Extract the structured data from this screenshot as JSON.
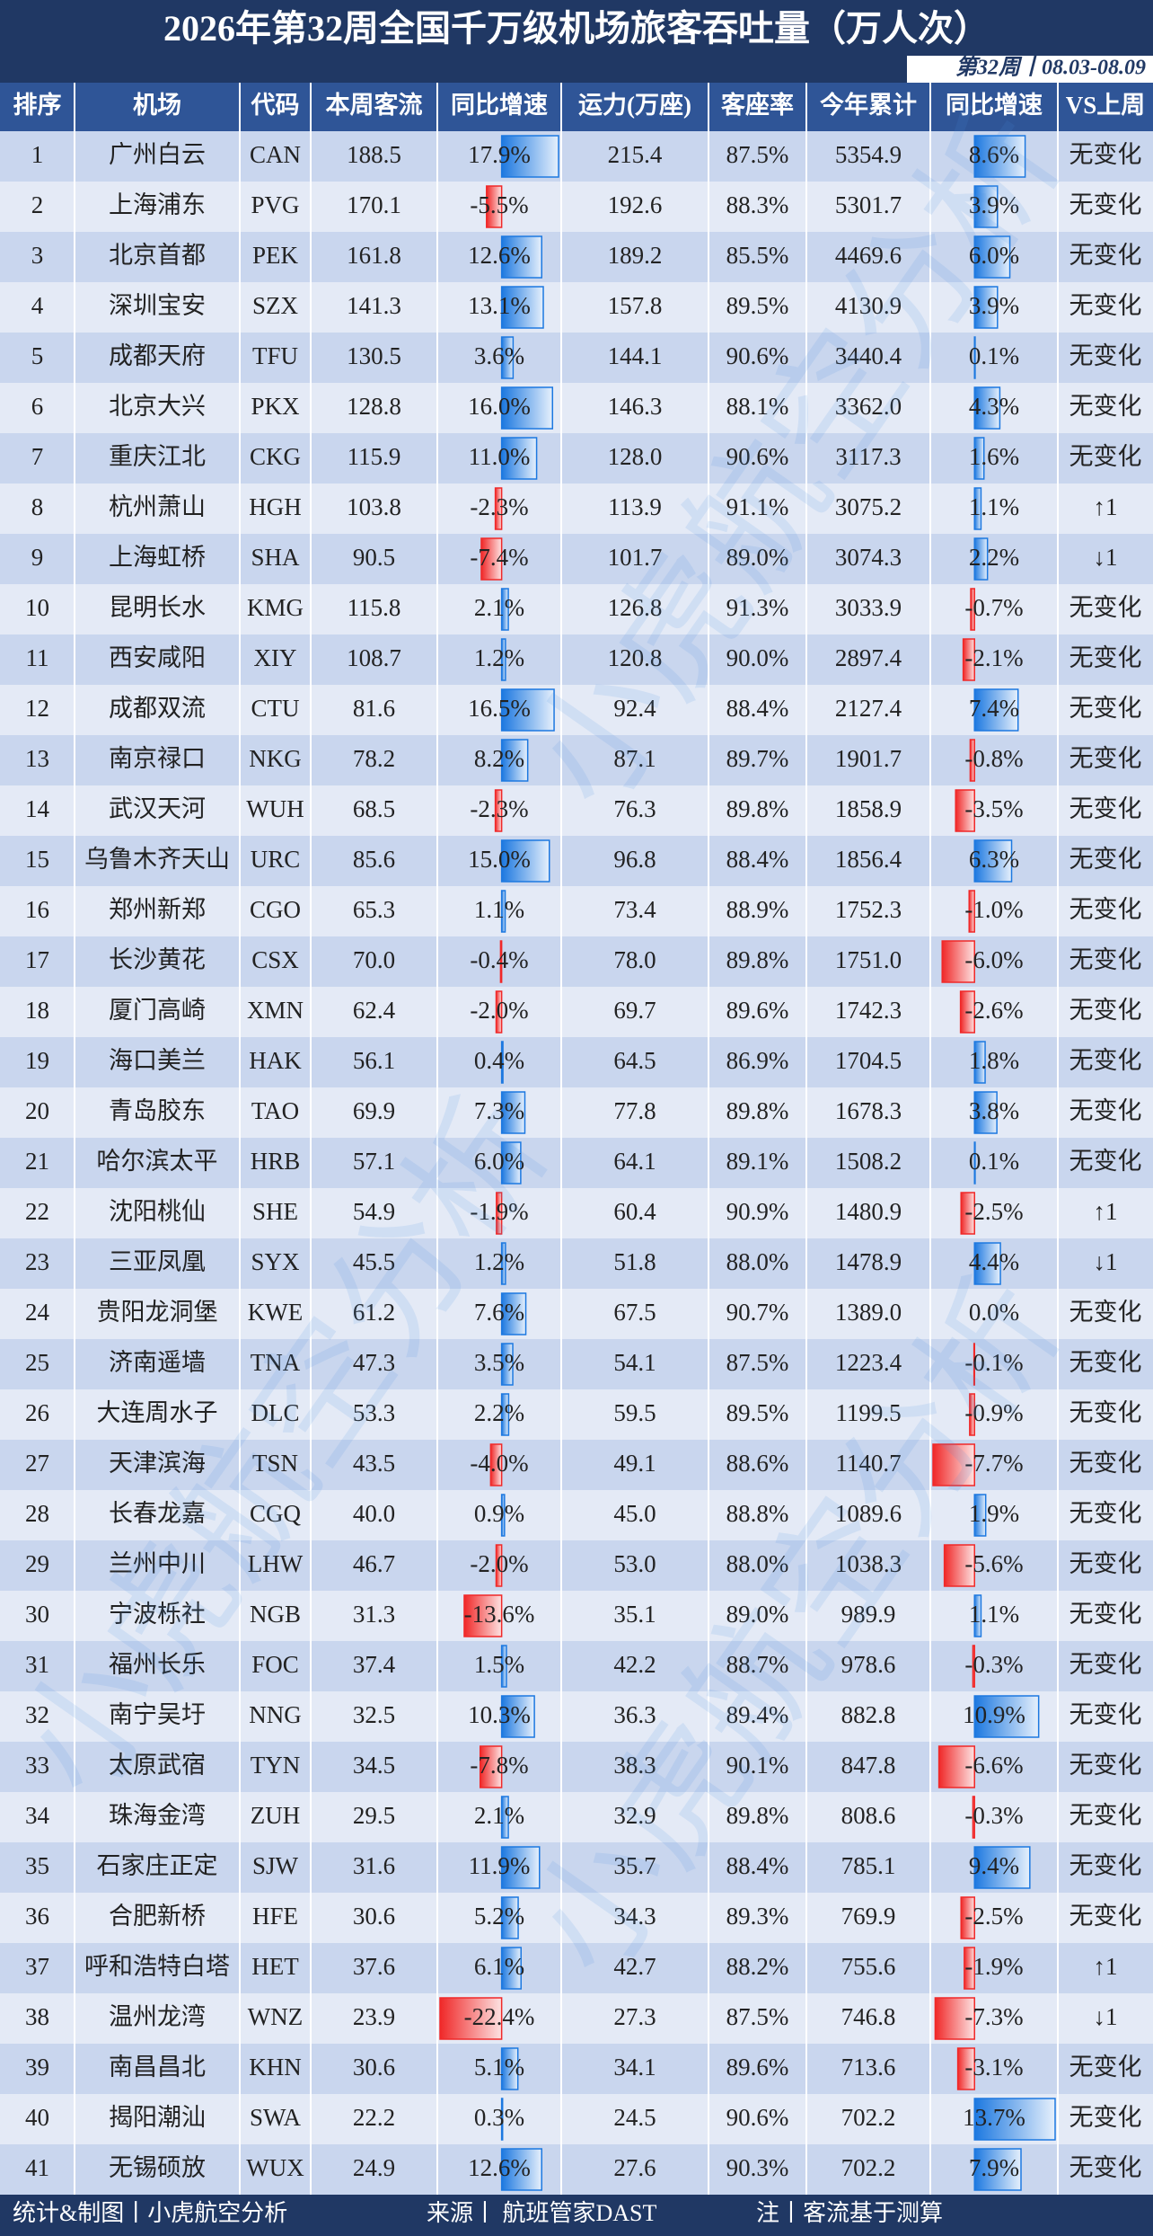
{
  "title": "2026年第32周全国千万级机场旅客吞吐量（万人次）",
  "subtitle": "第32周丨08.03-08.09",
  "table": {
    "header": [
      "排序",
      "机场",
      "代码",
      "本周客流",
      "同比增速",
      "运力(万座)",
      "客座率",
      "今年累计",
      "同比增速",
      "VS上周"
    ],
    "rows": [
      [
        "1",
        "广州白云",
        "CAN",
        "188.5",
        17.9,
        "17.9%",
        "215.4",
        "87.5%",
        "5354.9",
        8.6,
        "8.6%",
        "无变化"
      ],
      [
        "2",
        "上海浦东",
        "PVG",
        "170.1",
        -5.5,
        "-5.5%",
        "192.6",
        "88.3%",
        "5301.7",
        3.9,
        "3.9%",
        "无变化"
      ],
      [
        "3",
        "北京首都",
        "PEK",
        "161.8",
        12.6,
        "12.6%",
        "189.2",
        "85.5%",
        "4469.6",
        6.0,
        "6.0%",
        "无变化"
      ],
      [
        "4",
        "深圳宝安",
        "SZX",
        "141.3",
        13.1,
        "13.1%",
        "157.8",
        "89.5%",
        "4130.9",
        3.9,
        "3.9%",
        "无变化"
      ],
      [
        "5",
        "成都天府",
        "TFU",
        "130.5",
        3.6,
        "3.6%",
        "144.1",
        "90.6%",
        "3440.4",
        0.1,
        "0.1%",
        "无变化"
      ],
      [
        "6",
        "北京大兴",
        "PKX",
        "128.8",
        16.0,
        "16.0%",
        "146.3",
        "88.1%",
        "3362.0",
        4.3,
        "4.3%",
        "无变化"
      ],
      [
        "7",
        "重庆江北",
        "CKG",
        "115.9",
        11.0,
        "11.0%",
        "128.0",
        "90.6%",
        "3117.3",
        1.6,
        "1.6%",
        "无变化"
      ],
      [
        "8",
        "杭州萧山",
        "HGH",
        "103.8",
        -2.3,
        "-2.3%",
        "113.9",
        "91.1%",
        "3075.2",
        1.1,
        "1.1%",
        "↑1"
      ],
      [
        "9",
        "上海虹桥",
        "SHA",
        "90.5",
        -7.4,
        "-7.4%",
        "101.7",
        "89.0%",
        "3074.3",
        2.2,
        "2.2%",
        "↓1"
      ],
      [
        "10",
        "昆明长水",
        "KMG",
        "115.8",
        2.1,
        "2.1%",
        "126.8",
        "91.3%",
        "3033.9",
        -0.7,
        "-0.7%",
        "无变化"
      ],
      [
        "11",
        "西安咸阳",
        "XIY",
        "108.7",
        1.2,
        "1.2%",
        "120.8",
        "90.0%",
        "2897.4",
        -2.1,
        "-2.1%",
        "无变化"
      ],
      [
        "12",
        "成都双流",
        "CTU",
        "81.6",
        16.5,
        "16.5%",
        "92.4",
        "88.4%",
        "2127.4",
        7.4,
        "7.4%",
        "无变化"
      ],
      [
        "13",
        "南京禄口",
        "NKG",
        "78.2",
        8.2,
        "8.2%",
        "87.1",
        "89.7%",
        "1901.7",
        -0.8,
        "-0.8%",
        "无变化"
      ],
      [
        "14",
        "武汉天河",
        "WUH",
        "68.5",
        -2.3,
        "-2.3%",
        "76.3",
        "89.8%",
        "1858.9",
        -3.5,
        "-3.5%",
        "无变化"
      ],
      [
        "15",
        "乌鲁木齐天山",
        "URC",
        "85.6",
        15.0,
        "15.0%",
        "96.8",
        "88.4%",
        "1856.4",
        6.3,
        "6.3%",
        "无变化"
      ],
      [
        "16",
        "郑州新郑",
        "CGO",
        "65.3",
        1.1,
        "1.1%",
        "73.4",
        "88.9%",
        "1752.3",
        -1.0,
        "-1.0%",
        "无变化"
      ],
      [
        "17",
        "长沙黄花",
        "CSX",
        "70.0",
        -0.4,
        "-0.4%",
        "78.0",
        "89.8%",
        "1751.0",
        -6.0,
        "-6.0%",
        "无变化"
      ],
      [
        "18",
        "厦门高崎",
        "XMN",
        "62.4",
        -2.0,
        "-2.0%",
        "69.7",
        "89.6%",
        "1742.3",
        -2.6,
        "-2.6%",
        "无变化"
      ],
      [
        "19",
        "海口美兰",
        "HAK",
        "56.1",
        0.4,
        "0.4%",
        "64.5",
        "86.9%",
        "1704.5",
        1.8,
        "1.8%",
        "无变化"
      ],
      [
        "20",
        "青岛胶东",
        "TAO",
        "69.9",
        7.3,
        "7.3%",
        "77.8",
        "89.8%",
        "1678.3",
        3.8,
        "3.8%",
        "无变化"
      ],
      [
        "21",
        "哈尔滨太平",
        "HRB",
        "57.1",
        6.0,
        "6.0%",
        "64.1",
        "89.1%",
        "1508.2",
        0.1,
        "0.1%",
        "无变化"
      ],
      [
        "22",
        "沈阳桃仙",
        "SHE",
        "54.9",
        -1.9,
        "-1.9%",
        "60.4",
        "90.9%",
        "1480.9",
        -2.5,
        "-2.5%",
        "↑1"
      ],
      [
        "23",
        "三亚凤凰",
        "SYX",
        "45.5",
        1.2,
        "1.2%",
        "51.8",
        "88.0%",
        "1478.9",
        4.4,
        "4.4%",
        "↓1"
      ],
      [
        "24",
        "贵阳龙洞堡",
        "KWE",
        "61.2",
        7.6,
        "7.6%",
        "67.5",
        "90.7%",
        "1389.0",
        0.0,
        "0.0%",
        "无变化"
      ],
      [
        "25",
        "济南遥墙",
        "TNA",
        "47.3",
        3.5,
        "3.5%",
        "54.1",
        "87.5%",
        "1223.4",
        -0.1,
        "-0.1%",
        "无变化"
      ],
      [
        "26",
        "大连周水子",
        "DLC",
        "53.3",
        2.2,
        "2.2%",
        "59.5",
        "89.5%",
        "1199.5",
        -0.9,
        "-0.9%",
        "无变化"
      ],
      [
        "27",
        "天津滨海",
        "TSN",
        "43.5",
        -4.0,
        "-4.0%",
        "49.1",
        "88.6%",
        "1140.7",
        -7.7,
        "-7.7%",
        "无变化"
      ],
      [
        "28",
        "长春龙嘉",
        "CGQ",
        "40.0",
        0.9,
        "0.9%",
        "45.0",
        "88.8%",
        "1089.6",
        1.9,
        "1.9%",
        "无变化"
      ],
      [
        "29",
        "兰州中川",
        "LHW",
        "46.7",
        -2.0,
        "-2.0%",
        "53.0",
        "88.0%",
        "1038.3",
        -5.6,
        "-5.6%",
        "无变化"
      ],
      [
        "30",
        "宁波栎社",
        "NGB",
        "31.3",
        -13.6,
        "-13.6%",
        "35.1",
        "89.0%",
        "989.9",
        1.1,
        "1.1%",
        "无变化"
      ],
      [
        "31",
        "福州长乐",
        "FOC",
        "37.4",
        1.5,
        "1.5%",
        "42.2",
        "88.7%",
        "978.6",
        -0.3,
        "-0.3%",
        "无变化"
      ],
      [
        "32",
        "南宁吴圩",
        "NNG",
        "32.5",
        10.3,
        "10.3%",
        "36.3",
        "89.4%",
        "882.8",
        10.9,
        "10.9%",
        "无变化"
      ],
      [
        "33",
        "太原武宿",
        "TYN",
        "34.5",
        -7.8,
        "-7.8%",
        "38.3",
        "90.1%",
        "847.8",
        -6.6,
        "-6.6%",
        "无变化"
      ],
      [
        "34",
        "珠海金湾",
        "ZUH",
        "29.5",
        2.1,
        "2.1%",
        "32.9",
        "89.8%",
        "808.6",
        -0.3,
        "-0.3%",
        "无变化"
      ],
      [
        "35",
        "石家庄正定",
        "SJW",
        "31.6",
        11.9,
        "11.9%",
        "35.7",
        "88.4%",
        "785.1",
        9.4,
        "9.4%",
        "无变化"
      ],
      [
        "36",
        "合肥新桥",
        "HFE",
        "30.6",
        5.2,
        "5.2%",
        "34.3",
        "89.3%",
        "769.9",
        -2.5,
        "-2.5%",
        "无变化"
      ],
      [
        "37",
        "呼和浩特白塔",
        "HET",
        "37.6",
        6.1,
        "6.1%",
        "42.7",
        "88.2%",
        "755.6",
        -1.9,
        "-1.9%",
        "↑1"
      ],
      [
        "38",
        "温州龙湾",
        "WNZ",
        "23.9",
        -22.4,
        "-22.4%",
        "27.3",
        "87.5%",
        "746.8",
        -7.3,
        "-7.3%",
        "↓1"
      ],
      [
        "39",
        "南昌昌北",
        "KHN",
        "30.6",
        5.1,
        "5.1%",
        "34.1",
        "89.6%",
        "713.6",
        -3.1,
        "-3.1%",
        "无变化"
      ],
      [
        "40",
        "揭阳潮汕",
        "SWA",
        "22.2",
        0.3,
        "0.3%",
        "24.5",
        "90.6%",
        "702.2",
        13.7,
        "13.7%",
        "无变化"
      ],
      [
        "41",
        "无锡硕放",
        "WUX",
        "24.9",
        12.6,
        "12.6%",
        "27.6",
        "90.3%",
        "702.2",
        7.9,
        "7.9%",
        "无变化"
      ]
    ]
  },
  "footer": [
    "统计&制图丨小虎航空分析",
    "来源丨 航班管家DAST",
    "注丨客流基于测算"
  ],
  "watermark": "小虎航空分析"
}
